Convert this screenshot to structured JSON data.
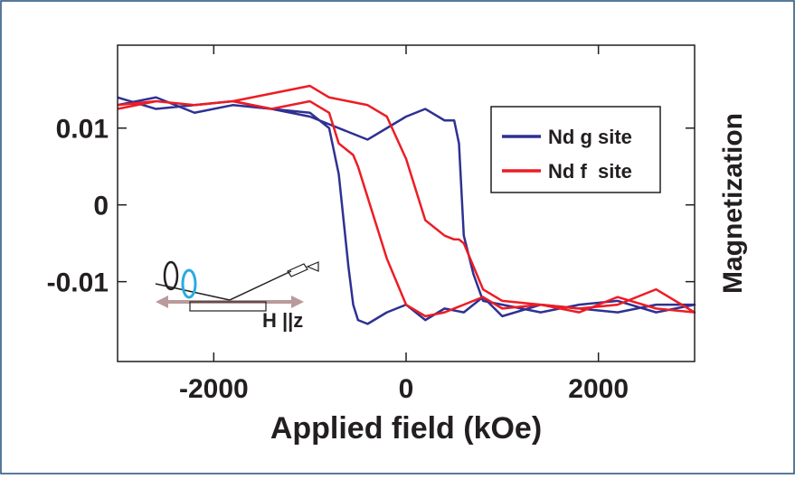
{
  "chart_data": {
    "type": "line",
    "x_label": "Applied field (kOe)",
    "y_label": "Magnetization",
    "annotation": "H ||z",
    "xlim": [
      -3000,
      3000
    ],
    "ylim": [
      -0.0204,
      0.0208
    ],
    "xticks": [
      -2000,
      0,
      2000
    ],
    "yticks": [
      -0.01,
      0,
      0.01
    ],
    "legend": "upper right",
    "x": [
      -3000,
      -2600,
      -2200,
      -1800,
      -1400,
      -1000,
      -800,
      -600,
      -400,
      -200,
      0,
      200,
      400,
      500,
      550,
      600,
      700,
      800,
      1000,
      1400,
      1800,
      2200,
      2600,
      3000,
      2600,
      2200,
      1800,
      1400,
      1000,
      800,
      600,
      400,
      200,
      0,
      -200,
      -400,
      -500,
      -550,
      -600,
      -700,
      -800,
      -1000,
      -1400,
      -1800,
      -2200,
      -2600,
      -3000
    ],
    "series": [
      {
        "name": "Nd g site",
        "color": "#2e3192",
        "values": [
          0.013,
          0.014,
          0.012,
          0.013,
          0.0125,
          0.0115,
          0.0105,
          0.0095,
          0.0085,
          0.01,
          0.0115,
          0.0125,
          0.011,
          0.011,
          0.008,
          -0.004,
          -0.009,
          -0.0125,
          -0.013,
          -0.014,
          -0.013,
          -0.0125,
          -0.014,
          -0.013,
          -0.013,
          -0.014,
          -0.0135,
          -0.013,
          -0.0145,
          -0.012,
          -0.014,
          -0.0135,
          -0.015,
          -0.013,
          -0.014,
          -0.0155,
          -0.015,
          -0.013,
          -0.008,
          0.004,
          0.01,
          0.012,
          0.0125,
          0.0135,
          0.013,
          0.0125,
          0.014
        ]
      },
      {
        "name": "Nd f  site",
        "color": "#ed1c24",
        "values": [
          0.013,
          0.0135,
          0.013,
          0.0135,
          0.0145,
          0.0155,
          0.014,
          0.0135,
          0.013,
          0.0115,
          0.006,
          -0.002,
          -0.004,
          -0.0045,
          -0.0045,
          -0.005,
          -0.008,
          -0.011,
          -0.0125,
          -0.013,
          -0.0135,
          -0.013,
          -0.011,
          -0.014,
          -0.0135,
          -0.012,
          -0.014,
          -0.013,
          -0.0135,
          -0.012,
          -0.013,
          -0.014,
          -0.0145,
          -0.013,
          -0.007,
          0.001,
          0.005,
          0.0065,
          0.007,
          0.008,
          0.012,
          0.0135,
          0.0125,
          0.0135,
          0.013,
          0.0135,
          0.0125
        ]
      }
    ]
  }
}
